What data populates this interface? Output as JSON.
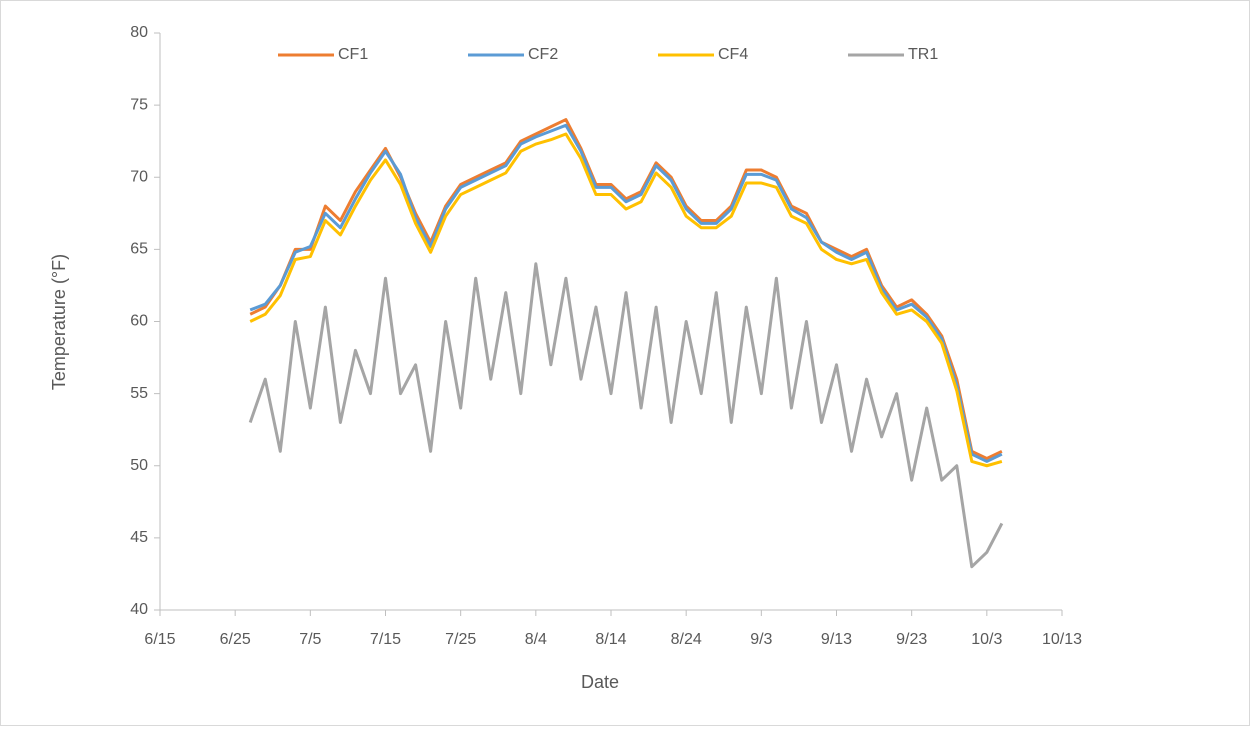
{
  "chart_data": {
    "type": "line",
    "xlabel": "Date",
    "ylabel": "Temperature (°F)",
    "x": [
      "6/27",
      "6/29",
      "7/1",
      "7/3",
      "7/5",
      "7/7",
      "7/9",
      "7/11",
      "7/13",
      "7/15",
      "7/17",
      "7/19",
      "7/21",
      "7/23",
      "7/25",
      "7/27",
      "7/29",
      "7/31",
      "8/2",
      "8/4",
      "8/6",
      "8/8",
      "8/10",
      "8/12",
      "8/14",
      "8/16",
      "8/18",
      "8/20",
      "8/22",
      "8/24",
      "8/26",
      "8/28",
      "8/30",
      "9/1",
      "9/3",
      "9/5",
      "9/7",
      "9/9",
      "9/11",
      "9/13",
      "9/15",
      "9/17",
      "9/19",
      "9/21",
      "9/23",
      "9/25",
      "9/27",
      "9/29",
      "10/1",
      "10/3",
      "10/5"
    ],
    "series": [
      {
        "name": "CF1",
        "color": "#ed7d31",
        "values": [
          60.5,
          61,
          62.5,
          65,
          65,
          68,
          67,
          69,
          70.5,
          72,
          70,
          67.5,
          65.5,
          68,
          69.5,
          70,
          70.5,
          71,
          72.5,
          73,
          73.5,
          74,
          72,
          69.5,
          69.5,
          68.5,
          69,
          71,
          70,
          68,
          67,
          67,
          68,
          70.5,
          70.5,
          70,
          68,
          67.5,
          65.5,
          65,
          64.5,
          65,
          62.5,
          61,
          61.5,
          60.5,
          59,
          56,
          51,
          50.5,
          51
        ]
      },
      {
        "name": "CF2",
        "color": "#5b9bd5",
        "values": [
          60.8,
          61.2,
          62.5,
          64.8,
          65.2,
          67.5,
          66.5,
          68.5,
          70.3,
          71.8,
          70.2,
          67.2,
          65.2,
          67.8,
          69.3,
          69.8,
          70.3,
          70.8,
          72.3,
          72.8,
          73.2,
          73.6,
          71.8,
          69.3,
          69.3,
          68.3,
          68.8,
          70.8,
          69.8,
          67.8,
          66.8,
          66.8,
          67.8,
          70.2,
          70.2,
          69.8,
          67.8,
          67.2,
          65.5,
          64.8,
          64.3,
          64.8,
          62.3,
          60.8,
          61.2,
          60.3,
          58.8,
          55.6,
          50.8,
          50.3,
          50.8
        ]
      },
      {
        "name": "CF4",
        "color": "#ffc000",
        "values": [
          60,
          60.5,
          61.8,
          64.3,
          64.5,
          67,
          66,
          68,
          69.8,
          71.2,
          69.5,
          66.8,
          64.8,
          67.3,
          68.8,
          69.3,
          69.8,
          70.3,
          71.8,
          72.3,
          72.6,
          73,
          71.3,
          68.8,
          68.8,
          67.8,
          68.3,
          70.3,
          69.3,
          67.3,
          66.5,
          66.5,
          67.3,
          69.6,
          69.6,
          69.3,
          67.3,
          66.8,
          65,
          64.3,
          64,
          64.3,
          62,
          60.5,
          60.8,
          60,
          58.5,
          55.2,
          50.3,
          50,
          50.3
        ]
      },
      {
        "name": "TR1",
        "color": "#a5a5a5",
        "values": [
          53,
          56,
          51,
          60,
          54,
          61,
          53,
          58,
          55,
          63,
          55,
          57,
          51,
          60,
          54,
          63,
          56,
          62,
          55,
          64,
          57,
          63,
          56,
          61,
          55,
          62,
          54,
          61,
          53,
          60,
          55,
          62,
          53,
          61,
          55,
          63,
          54,
          60,
          53,
          57,
          51,
          56,
          52,
          55,
          49,
          54,
          49,
          50,
          43,
          44,
          46
        ]
      }
    ],
    "xlim": [
      "6/15",
      "10/13"
    ],
    "xticks": [
      "6/15",
      "6/25",
      "7/5",
      "7/15",
      "7/25",
      "8/4",
      "8/14",
      "8/24",
      "9/3",
      "9/13",
      "9/23",
      "10/3",
      "10/13"
    ],
    "ylim": [
      40,
      80
    ],
    "yticks": [
      40,
      45,
      50,
      55,
      60,
      65,
      70,
      75,
      80
    ],
    "legend": "top",
    "grid": false
  }
}
